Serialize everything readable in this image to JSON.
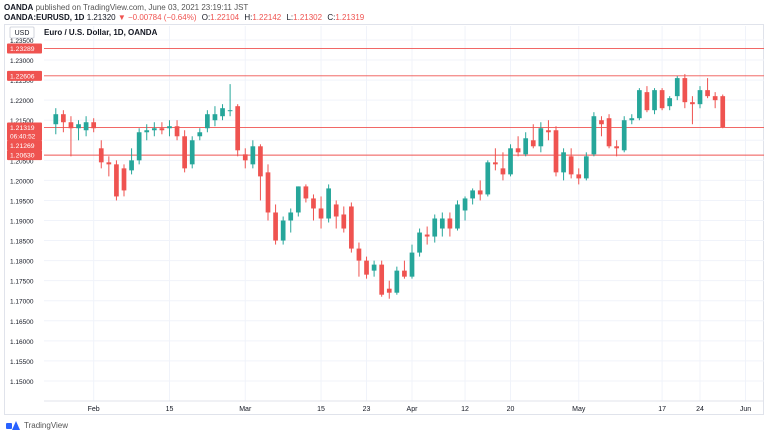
{
  "header": {
    "publisher_line": "published on TradingView.com, June 03, 2021 23:19:11 JST",
    "broker": "OANDA",
    "symbol": "OANDA:EURUSD, 1D",
    "price": "1.21320",
    "change": "▼ −0.00784 (−0.64%)",
    "o_label": "O:",
    "o_value": "1.22104",
    "h_label": "H:",
    "h_value": "1.22142",
    "l_label": "L:",
    "l_value": "1.21302",
    "c_label": "C:",
    "c_value": "1.21319"
  },
  "footer": {
    "brand": "TradingView"
  },
  "colors": {
    "up": "#26a69a",
    "down": "#ef5350",
    "grid": "#f0f3fa",
    "level_line": "#ef5350",
    "level_label_bg": "#ef5350"
  },
  "chart_data": {
    "type": "candlestick",
    "title": "Euro / U.S. Dollar, 1D, OANDA",
    "currency_label": "USD",
    "ylim": [
      1.145,
      1.235
    ],
    "grid": true,
    "y_ticks": [
      "1.23500",
      "1.23000",
      "1.22500",
      "1.22000",
      "1.21500",
      "1.21000",
      "1.20500",
      "1.20000",
      "1.19500",
      "1.19000",
      "1.18500",
      "1.18000",
      "1.17500",
      "1.17000",
      "1.16500",
      "1.16000",
      "1.15500",
      "1.15000"
    ],
    "x_ticks": [
      {
        "label": "Feb",
        "index": 5
      },
      {
        "label": "15",
        "index": 15
      },
      {
        "label": "Mar",
        "index": 25
      },
      {
        "label": "15",
        "index": 35
      },
      {
        "label": "23",
        "index": 41
      },
      {
        "label": "Apr",
        "index": 47
      },
      {
        "label": "12",
        "index": 54
      },
      {
        "label": "20",
        "index": 60
      },
      {
        "label": "May",
        "index": 69
      },
      {
        "label": "17",
        "index": 80
      },
      {
        "label": "24",
        "index": 85
      },
      {
        "label": "Jun",
        "index": 91
      }
    ],
    "horizontal_levels": [
      {
        "value": 1.23289,
        "label": "1.23289"
      },
      {
        "value": 1.22606,
        "label": "1.22606"
      },
      {
        "value": 1.21319,
        "label": "1.21319"
      },
      {
        "value": 1.2063,
        "label": "1.20630"
      }
    ],
    "price_labels": [
      {
        "value": 1.21319,
        "label": "1.21319",
        "sublabel": "06:40:52"
      },
      {
        "value": 1.21269,
        "label": "1.21269"
      }
    ],
    "candles": [
      {
        "o": 1.214,
        "h": 1.218,
        "l": 1.2115,
        "c": 1.2165
      },
      {
        "o": 1.2165,
        "h": 1.2175,
        "l": 1.212,
        "c": 1.2145
      },
      {
        "o": 1.2145,
        "h": 1.216,
        "l": 1.206,
        "c": 1.213
      },
      {
        "o": 1.213,
        "h": 1.215,
        "l": 1.21,
        "c": 1.214
      },
      {
        "o": 1.2125,
        "h": 1.216,
        "l": 1.211,
        "c": 1.2145
      },
      {
        "o": 1.2145,
        "h": 1.2155,
        "l": 1.212,
        "c": 1.213
      },
      {
        "o": 1.208,
        "h": 1.21,
        "l": 1.203,
        "c": 1.2045
      },
      {
        "o": 1.2045,
        "h": 1.206,
        "l": 1.201,
        "c": 1.204
      },
      {
        "o": 1.204,
        "h": 1.205,
        "l": 1.195,
        "c": 1.196
      },
      {
        "o": 1.203,
        "h": 1.204,
        "l": 1.196,
        "c": 1.1975
      },
      {
        "o": 1.2025,
        "h": 1.208,
        "l": 1.2015,
        "c": 1.205
      },
      {
        "o": 1.205,
        "h": 1.213,
        "l": 1.204,
        "c": 1.212
      },
      {
        "o": 1.212,
        "h": 1.214,
        "l": 1.21,
        "c": 1.2125
      },
      {
        "o": 1.2125,
        "h": 1.2145,
        "l": 1.211,
        "c": 1.213
      },
      {
        "o": 1.213,
        "h": 1.2145,
        "l": 1.2115,
        "c": 1.2125
      },
      {
        "o": 1.213,
        "h": 1.215,
        "l": 1.211,
        "c": 1.2135
      },
      {
        "o": 1.2135,
        "h": 1.215,
        "l": 1.21,
        "c": 1.211
      },
      {
        "o": 1.211,
        "h": 1.2125,
        "l": 1.202,
        "c": 1.203
      },
      {
        "o": 1.204,
        "h": 1.211,
        "l": 1.203,
        "c": 1.21
      },
      {
        "o": 1.211,
        "h": 1.213,
        "l": 1.21,
        "c": 1.212
      },
      {
        "o": 1.213,
        "h": 1.2175,
        "l": 1.212,
        "c": 1.2165
      },
      {
        "o": 1.215,
        "h": 1.2185,
        "l": 1.2135,
        "c": 1.2165
      },
      {
        "o": 1.216,
        "h": 1.219,
        "l": 1.215,
        "c": 1.218
      },
      {
        "o": 1.2175,
        "h": 1.224,
        "l": 1.216,
        "c": 1.2175
      },
      {
        "o": 1.2185,
        "h": 1.219,
        "l": 1.206,
        "c": 1.2075
      },
      {
        "o": 1.2065,
        "h": 1.208,
        "l": 1.203,
        "c": 1.205
      },
      {
        "o": 1.204,
        "h": 1.21,
        "l": 1.203,
        "c": 1.2085
      },
      {
        "o": 1.2085,
        "h": 1.209,
        "l": 1.195,
        "c": 1.201
      },
      {
        "o": 1.202,
        "h": 1.204,
        "l": 1.19,
        "c": 1.192
      },
      {
        "o": 1.192,
        "h": 1.194,
        "l": 1.184,
        "c": 1.185
      },
      {
        "o": 1.185,
        "h": 1.191,
        "l": 1.184,
        "c": 1.19
      },
      {
        "o": 1.19,
        "h": 1.193,
        "l": 1.187,
        "c": 1.192
      },
      {
        "o": 1.192,
        "h": 1.1985,
        "l": 1.191,
        "c": 1.1985
      },
      {
        "o": 1.1985,
        "h": 1.199,
        "l": 1.1945,
        "c": 1.1955
      },
      {
        "o": 1.1955,
        "h": 1.1965,
        "l": 1.19,
        "c": 1.193
      },
      {
        "o": 1.193,
        "h": 1.196,
        "l": 1.188,
        "c": 1.1905
      },
      {
        "o": 1.1905,
        "h": 1.199,
        "l": 1.1895,
        "c": 1.198
      },
      {
        "o": 1.194,
        "h": 1.195,
        "l": 1.188,
        "c": 1.191
      },
      {
        "o": 1.1915,
        "h": 1.1935,
        "l": 1.187,
        "c": 1.188
      },
      {
        "o": 1.1935,
        "h": 1.1945,
        "l": 1.182,
        "c": 1.183
      },
      {
        "o": 1.183,
        "h": 1.1845,
        "l": 1.176,
        "c": 1.18
      },
      {
        "o": 1.18,
        "h": 1.181,
        "l": 1.1755,
        "c": 1.1765
      },
      {
        "o": 1.1775,
        "h": 1.18,
        "l": 1.176,
        "c": 1.179
      },
      {
        "o": 1.179,
        "h": 1.18,
        "l": 1.171,
        "c": 1.1715
      },
      {
        "o": 1.173,
        "h": 1.175,
        "l": 1.1705,
        "c": 1.172
      },
      {
        "o": 1.172,
        "h": 1.1785,
        "l": 1.1715,
        "c": 1.1775
      },
      {
        "o": 1.1775,
        "h": 1.18,
        "l": 1.1755,
        "c": 1.176
      },
      {
        "o": 1.176,
        "h": 1.184,
        "l": 1.1755,
        "c": 1.182
      },
      {
        "o": 1.182,
        "h": 1.188,
        "l": 1.181,
        "c": 1.187
      },
      {
        "o": 1.1865,
        "h": 1.1885,
        "l": 1.184,
        "c": 1.186
      },
      {
        "o": 1.186,
        "h": 1.1915,
        "l": 1.1845,
        "c": 1.1905
      },
      {
        "o": 1.188,
        "h": 1.192,
        "l": 1.186,
        "c": 1.1905
      },
      {
        "o": 1.1905,
        "h": 1.192,
        "l": 1.186,
        "c": 1.188
      },
      {
        "o": 1.188,
        "h": 1.195,
        "l": 1.1875,
        "c": 1.194
      },
      {
        "o": 1.1925,
        "h": 1.196,
        "l": 1.19,
        "c": 1.1955
      },
      {
        "o": 1.1955,
        "h": 1.198,
        "l": 1.194,
        "c": 1.1975
      },
      {
        "o": 1.1975,
        "h": 1.2,
        "l": 1.195,
        "c": 1.1965
      },
      {
        "o": 1.1965,
        "h": 1.205,
        "l": 1.196,
        "c": 1.2045
      },
      {
        "o": 1.2045,
        "h": 1.208,
        "l": 1.2025,
        "c": 1.204
      },
      {
        "o": 1.203,
        "h": 1.207,
        "l": 1.2,
        "c": 1.2015
      },
      {
        "o": 1.2015,
        "h": 1.209,
        "l": 1.201,
        "c": 1.208
      },
      {
        "o": 1.208,
        "h": 1.211,
        "l": 1.206,
        "c": 1.207
      },
      {
        "o": 1.2065,
        "h": 1.212,
        "l": 1.206,
        "c": 1.2105
      },
      {
        "o": 1.21,
        "h": 1.214,
        "l": 1.208,
        "c": 1.2085
      },
      {
        "o": 1.2085,
        "h": 1.2145,
        "l": 1.207,
        "c": 1.213
      },
      {
        "o": 1.2125,
        "h": 1.215,
        "l": 1.21,
        "c": 1.212
      },
      {
        "o": 1.2125,
        "h": 1.2135,
        "l": 1.201,
        "c": 1.202
      },
      {
        "o": 1.202,
        "h": 1.208,
        "l": 1.2,
        "c": 1.207
      },
      {
        "o": 1.206,
        "h": 1.208,
        "l": 1.2005,
        "c": 1.2015
      },
      {
        "o": 1.2015,
        "h": 1.203,
        "l": 1.199,
        "c": 1.2005
      },
      {
        "o": 1.2005,
        "h": 1.207,
        "l": 1.2,
        "c": 1.206
      },
      {
        "o": 1.2065,
        "h": 1.217,
        "l": 1.206,
        "c": 1.216
      },
      {
        "o": 1.215,
        "h": 1.216,
        "l": 1.211,
        "c": 1.214
      },
      {
        "o": 1.2155,
        "h": 1.2165,
        "l": 1.208,
        "c": 1.2085
      },
      {
        "o": 1.2085,
        "h": 1.21,
        "l": 1.206,
        "c": 1.208
      },
      {
        "o": 1.2075,
        "h": 1.216,
        "l": 1.207,
        "c": 1.215
      },
      {
        "o": 1.215,
        "h": 1.2165,
        "l": 1.214,
        "c": 1.2155
      },
      {
        "o": 1.2155,
        "h": 1.223,
        "l": 1.215,
        "c": 1.2225
      },
      {
        "o": 1.222,
        "h": 1.2235,
        "l": 1.217,
        "c": 1.2175
      },
      {
        "o": 1.2175,
        "h": 1.223,
        "l": 1.2165,
        "c": 1.2225
      },
      {
        "o": 1.2225,
        "h": 1.223,
        "l": 1.2175,
        "c": 1.218
      },
      {
        "o": 1.2185,
        "h": 1.221,
        "l": 1.2175,
        "c": 1.2205
      },
      {
        "o": 1.221,
        "h": 1.226,
        "l": 1.22,
        "c": 1.2255
      },
      {
        "o": 1.2255,
        "h": 1.2265,
        "l": 1.218,
        "c": 1.2195
      },
      {
        "o": 1.2195,
        "h": 1.221,
        "l": 1.214,
        "c": 1.219
      },
      {
        "o": 1.219,
        "h": 1.2235,
        "l": 1.218,
        "c": 1.2225
      },
      {
        "o": 1.2225,
        "h": 1.2255,
        "l": 1.2205,
        "c": 1.221
      },
      {
        "o": 1.221,
        "h": 1.222,
        "l": 1.218,
        "c": 1.22
      },
      {
        "o": 1.221,
        "h": 1.2214,
        "l": 1.213,
        "c": 1.2132
      }
    ]
  }
}
